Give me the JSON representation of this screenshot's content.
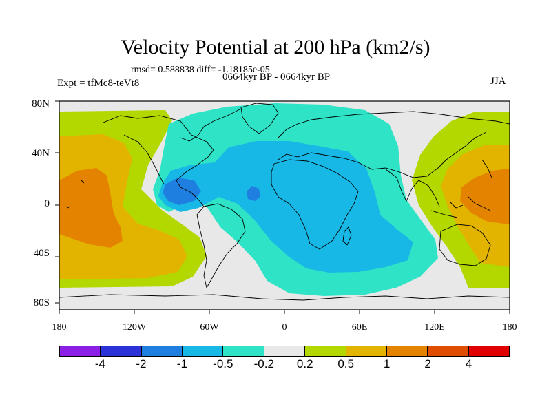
{
  "title": "Velocity Potential at 200 hPa (km2/s)",
  "stats": "rmsd= 0.588838 diff= -1.18185e-05",
  "expt": "Expt = tfMc8-teVt8",
  "period": "0664kyr BP - 0664kyr BP",
  "season": "JJA",
  "lat_labels": [
    "80N",
    "40N",
    "0",
    "40S",
    "80S"
  ],
  "lon_labels": [
    "180",
    "120W",
    "60W",
    "0",
    "60E",
    "120E",
    "180"
  ],
  "colorbar": {
    "colors": [
      "#8c1fe6",
      "#2a32d8",
      "#1e7fe0",
      "#18b8e6",
      "#2ee3c6",
      "#e8e8e8",
      "#b2d800",
      "#e2b400",
      "#e38300",
      "#df4e00",
      "#e00000"
    ],
    "labels": [
      "-4",
      "-2",
      "-1",
      "-0.5",
      "-0.2",
      "0.2",
      "0.5",
      "1",
      "2",
      "4"
    ]
  },
  "regions": {
    "background": "#e8e8e8",
    "level_neg_0_2": "#2ee3c6",
    "level_neg_0_5": "#18b8e6",
    "level_neg_1": "#1e7fe0",
    "level_pos_0_2": "#b2d800",
    "level_pos_0_5": "#e2b400",
    "level_pos_1": "#e38300"
  }
}
